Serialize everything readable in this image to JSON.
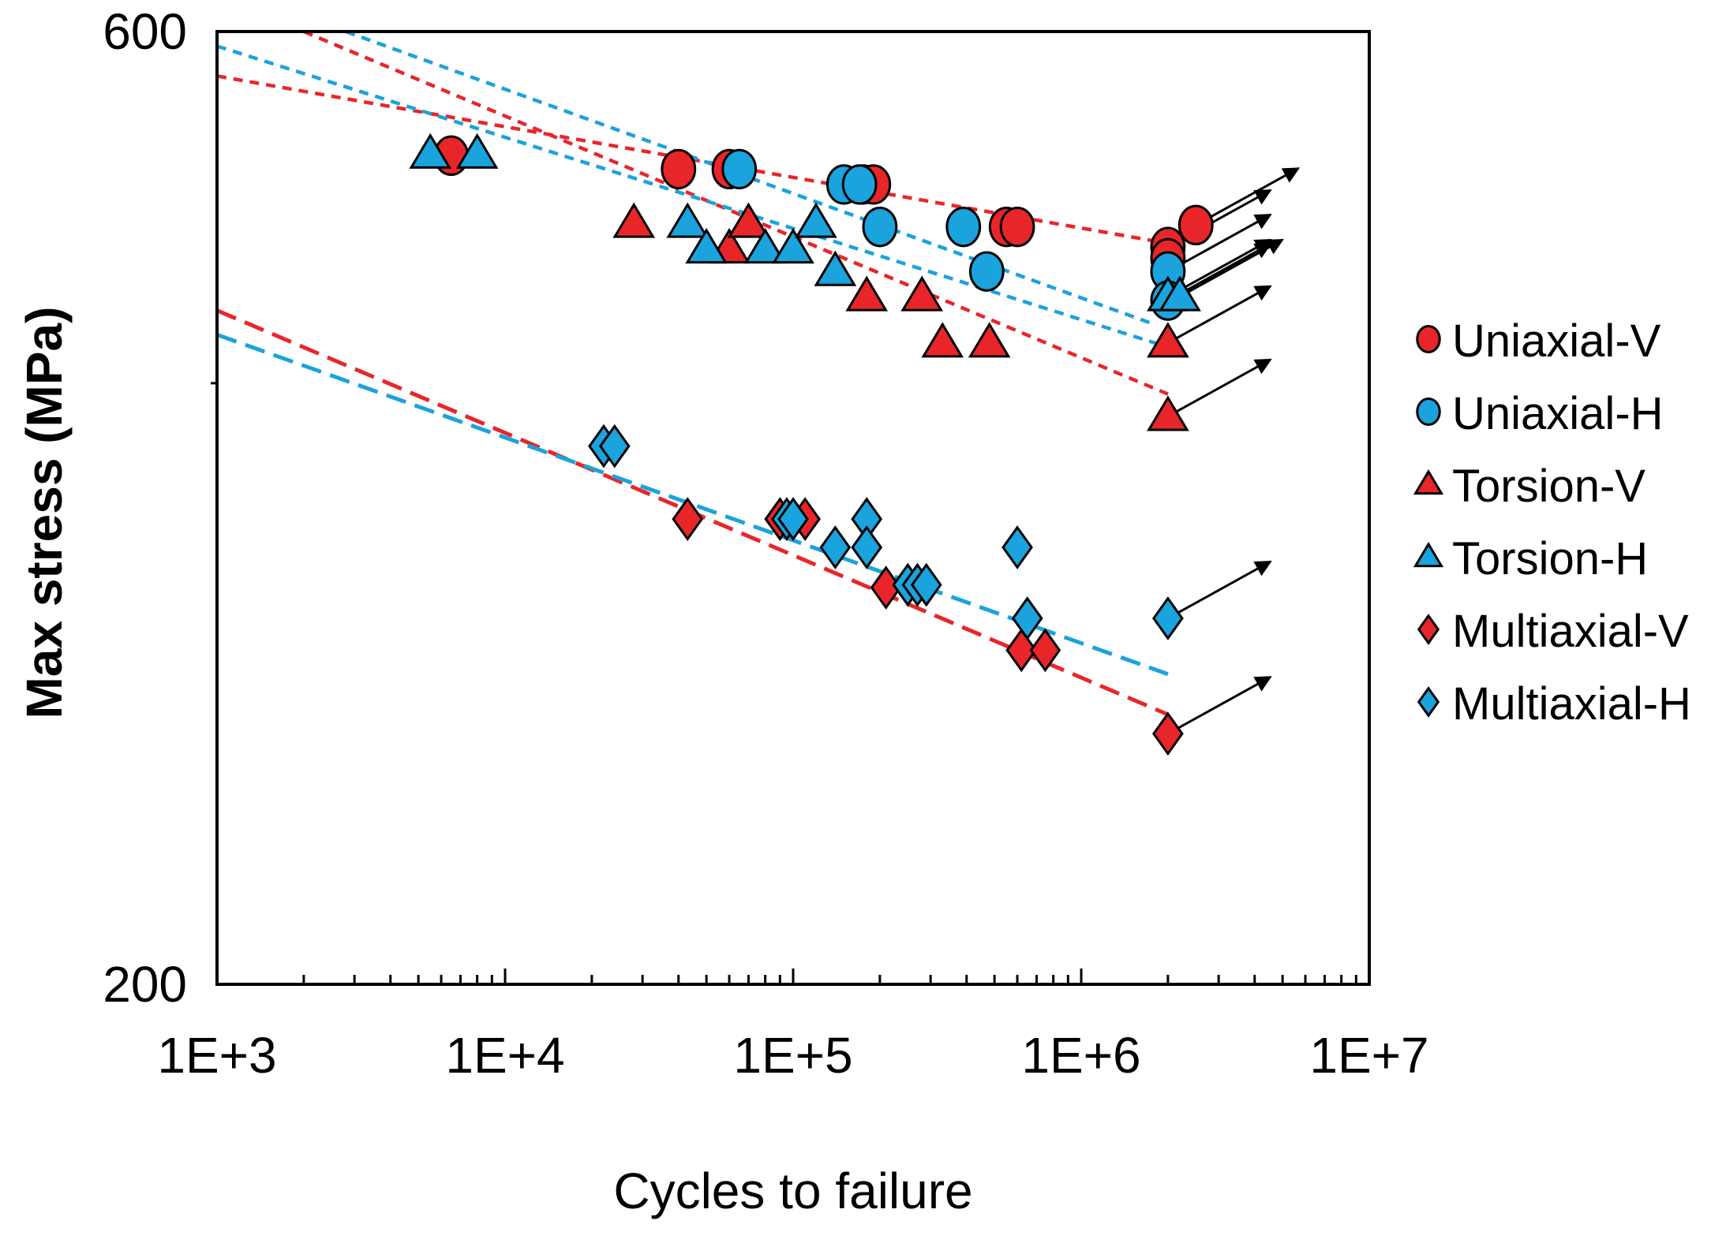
{
  "chart_data": {
    "type": "scatter",
    "title": "",
    "xlabel": "Cycles to failure",
    "ylabel": "Max stress (MPa)",
    "xscale": "log",
    "yscale": "log",
    "xlim": [
      1000,
      10000000
    ],
    "ylim": [
      200,
      600
    ],
    "x_tick_labels": [
      {
        "value": 1000,
        "label": "1E+3"
      },
      {
        "value": 10000,
        "label": "1E+4"
      },
      {
        "value": 100000,
        "label": "1E+5"
      },
      {
        "value": 1000000,
        "label": "1E+6"
      },
      {
        "value": 10000000,
        "label": "1E+7"
      }
    ],
    "y_tick_labels": [
      {
        "value": 600,
        "label": "600"
      },
      {
        "value": 200,
        "label": "200"
      }
    ],
    "y_minor_ticks": [
      400
    ],
    "legend_position": "right",
    "series": [
      {
        "name": "Uniaxial-V",
        "marker": "circle",
        "color": "#e8262a",
        "points": [
          [
            6500,
            520
          ],
          [
            40000,
            512
          ],
          [
            60000,
            512
          ],
          [
            175000,
            503
          ],
          [
            190000,
            503
          ],
          [
            550000,
            479
          ],
          [
            600000,
            479
          ],
          [
            2000000,
            468
          ],
          [
            2500000,
            480
          ],
          [
            2000000,
            462
          ]
        ],
        "runouts": [
          [
            2500000,
            480
          ],
          [
            2000000,
            468
          ]
        ],
        "fit": [
          [
            1000,
            570
          ],
          [
            2000000,
            470
          ]
        ]
      },
      {
        "name": "Uniaxial-H",
        "marker": "circle",
        "color": "#1aa3dc",
        "points": [
          [
            65000,
            512
          ],
          [
            150000,
            503
          ],
          [
            170000,
            503
          ],
          [
            200000,
            479
          ],
          [
            390000,
            479
          ],
          [
            470000,
            455
          ],
          [
            2000000,
            455
          ],
          [
            2000000,
            440
          ]
        ],
        "runouts": [
          [
            2000000,
            455
          ],
          [
            2000000,
            440
          ]
        ],
        "fit": [
          [
            2800,
            600
          ],
          [
            1800000,
            428
          ]
        ]
      },
      {
        "name": "Torsion-V",
        "marker": "triangle",
        "color": "#e8262a",
        "points": [
          [
            28000,
            481
          ],
          [
            60000,
            467
          ],
          [
            70000,
            481
          ],
          [
            180000,
            442
          ],
          [
            280000,
            442
          ],
          [
            330000,
            419
          ],
          [
            480000,
            419
          ],
          [
            2000000,
            419
          ],
          [
            2000000,
            385
          ]
        ],
        "runouts": [
          [
            2000000,
            419
          ],
          [
            2000000,
            385
          ]
        ],
        "fit": [
          [
            2000,
            600
          ],
          [
            2000000,
            395
          ]
        ]
      },
      {
        "name": "Torsion-H",
        "marker": "triangle",
        "color": "#1aa3dc",
        "points": [
          [
            5500,
            521
          ],
          [
            8000,
            521
          ],
          [
            43000,
            481
          ],
          [
            50000,
            467
          ],
          [
            80000,
            467
          ],
          [
            100000,
            467
          ],
          [
            120000,
            481
          ],
          [
            140000,
            455
          ],
          [
            2000000,
            442
          ],
          [
            2200000,
            442
          ]
        ],
        "runouts": [
          [
            2000000,
            442
          ],
          [
            2200000,
            442
          ]
        ],
        "fit": [
          [
            1000,
            590
          ],
          [
            2000000,
            417
          ]
        ]
      },
      {
        "name": "Multiaxial-V",
        "marker": "diamond",
        "color": "#e8262a",
        "points": [
          [
            43000,
            342
          ],
          [
            90000,
            342
          ],
          [
            110000,
            342
          ],
          [
            210000,
            316
          ],
          [
            620000,
            294
          ],
          [
            750000,
            294
          ],
          [
            2000000,
            267
          ]
        ],
        "runouts": [
          [
            2000000,
            267
          ]
        ],
        "fit": [
          [
            1000,
            435
          ],
          [
            2000000,
            273
          ]
        ]
      },
      {
        "name": "Multiaxial-H",
        "marker": "diamond",
        "color": "#1aa3dc",
        "points": [
          [
            22000,
            372
          ],
          [
            24000,
            372
          ],
          [
            95000,
            342
          ],
          [
            100000,
            342
          ],
          [
            140000,
            331
          ],
          [
            180000,
            342
          ],
          [
            180000,
            331
          ],
          [
            250000,
            317
          ],
          [
            270000,
            317
          ],
          [
            290000,
            317
          ],
          [
            600000,
            331
          ],
          [
            650000,
            305
          ],
          [
            2000000,
            305
          ]
        ],
        "runouts": [
          [
            2000000,
            305
          ]
        ],
        "fit": [
          [
            1000,
            423
          ],
          [
            2000000,
            286
          ]
        ]
      }
    ]
  },
  "colors": {
    "red": "#e8262a",
    "blue": "#1aa3dc"
  }
}
